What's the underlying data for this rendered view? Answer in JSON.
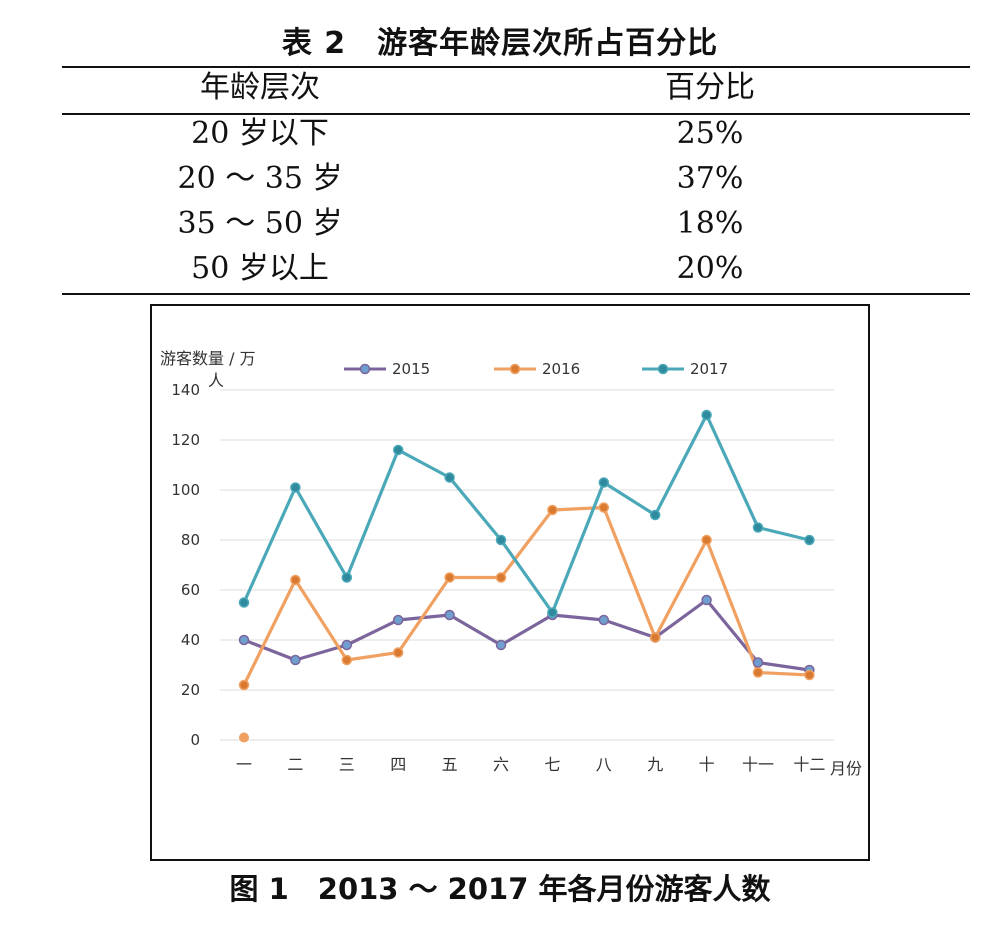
{
  "table": {
    "title": "表 2　游客年龄层次所占百分比",
    "headers": [
      "年龄层次",
      "百分比"
    ],
    "rows": [
      {
        "age": "20 岁以下",
        "percent": "25%"
      },
      {
        "age": "20 ～ 35 岁",
        "percent": "37%"
      },
      {
        "age": "35 ～ 50 岁",
        "percent": "18%"
      },
      {
        "age": "50 岁以上",
        "percent": "20%"
      }
    ]
  },
  "figure_caption": "图 1　2013 ～ 2017 年各月份游客人数",
  "chart_data": {
    "type": "line",
    "ylabel": "游客数量 / 万人",
    "xlabel": "月份",
    "ylim": [
      0,
      140
    ],
    "yticks": [
      0,
      20,
      40,
      60,
      80,
      100,
      120,
      140
    ],
    "categories": [
      "一",
      "二",
      "三",
      "四",
      "五",
      "六",
      "七",
      "八",
      "九",
      "十",
      "十一",
      "十二"
    ],
    "grid": true,
    "legend_position": "top",
    "series": [
      {
        "name": "2015",
        "color": "#7b659c",
        "marker": "#6f9fce",
        "values": [
          40,
          32,
          38,
          48,
          50,
          38,
          50,
          48,
          41,
          56,
          31,
          28
        ]
      },
      {
        "name": "2016",
        "color": "#f0a060",
        "marker": "#d97a30",
        "values": [
          22,
          64,
          32,
          35,
          65,
          65,
          92,
          93,
          41,
          80,
          27,
          26
        ]
      },
      {
        "name": "2017",
        "color": "#4aa8b8",
        "marker": "#2e8a9c",
        "values": [
          55,
          101,
          65,
          116,
          105,
          80,
          51,
          103,
          90,
          130,
          85,
          80
        ]
      }
    ],
    "annotations": [
      {
        "text": "stray marker",
        "x": "一",
        "y": 1,
        "color": "#f0a060"
      }
    ]
  }
}
